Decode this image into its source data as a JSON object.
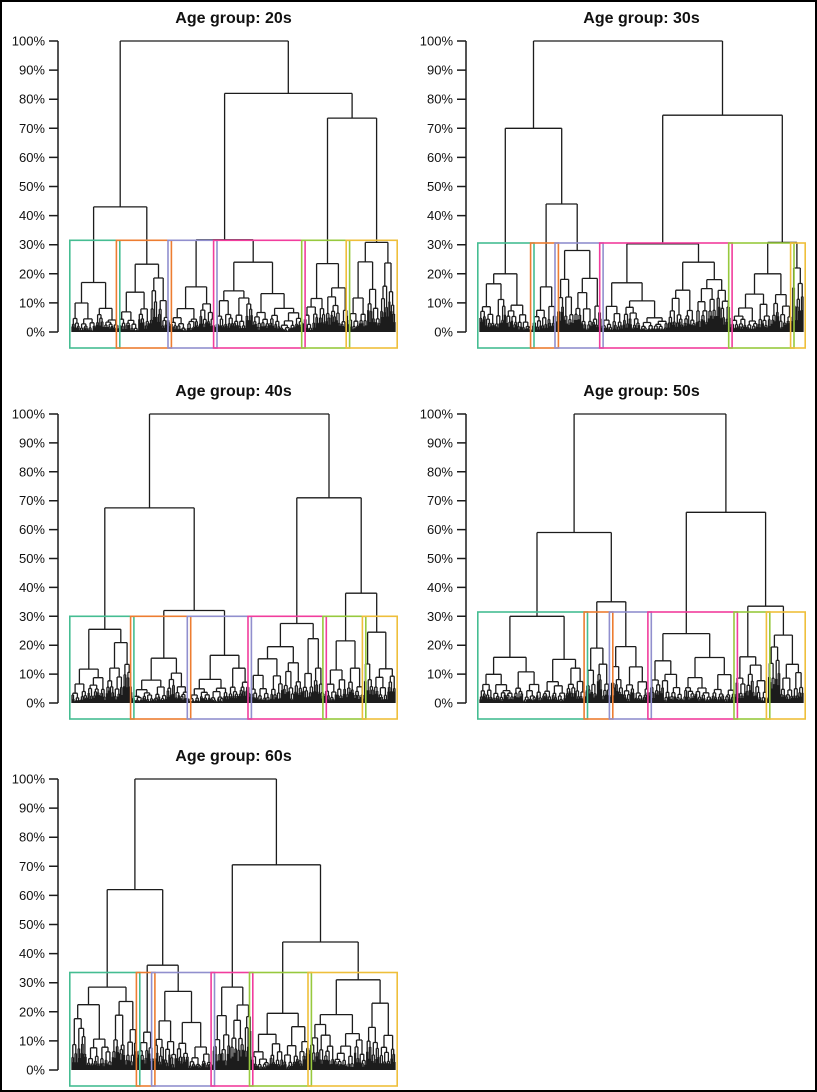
{
  "page": {
    "background": "#ffffff",
    "border_color": "#000000"
  },
  "chart_data": {
    "type": "dendrogram",
    "description": "Hierarchical clustering dendrograms of survey respondents by age group, each cut into 6 colored clusters (rect boxes) at roughly a 30% dissimilarity threshold",
    "layout": {
      "columns": 2,
      "rows": 3,
      "legend": "none",
      "grid": "off"
    },
    "y_axis": {
      "ylim": [
        0,
        100
      ],
      "tick_step_pct": 10,
      "tick_labels": [
        "0%",
        "10%",
        "20%",
        "30%",
        "40%",
        "50%",
        "60%",
        "70%",
        "80%",
        "90%",
        "100%"
      ]
    },
    "line_color": "#1c1c1c",
    "cluster_colors": [
      "#45bd92",
      "#ed7d31",
      "#918fce",
      "#f13d9d",
      "#97c93e",
      "#eebf3b"
    ],
    "panels": [
      {
        "title": "Age group: 20s",
        "row": 0,
        "col": 0,
        "seed": 13,
        "cut_height_pct": 31.5,
        "root_height_pct": 100,
        "clusters": [
          {
            "color_index": 0,
            "top_merge_pct": 17.0,
            "n_leaves": 46
          },
          {
            "color_index": 1,
            "top_merge_pct": 23.3,
            "n_leaves": 51
          },
          {
            "color_index": 2,
            "top_merge_pct": 15.5,
            "n_leaves": 45
          },
          {
            "color_index": 3,
            "top_merge_pct": 24.0,
            "n_leaves": 87
          },
          {
            "color_index": 4,
            "top_merge_pct": 23.5,
            "n_leaves": 44
          },
          {
            "color_index": 5,
            "top_merge_pct": 30.8,
            "n_leaves": 47
          }
        ],
        "skeleton": {
          "h": 100,
          "children": [
            {
              "h": 43,
              "children": [
                {
                  "cluster": 0
                },
                {
                  "cluster": 1
                }
              ]
            },
            {
              "h": 82,
              "children": [
                {
                  "h": 31.7,
                  "children": [
                    {
                      "cluster": 2
                    },
                    {
                      "cluster": 3
                    }
                  ]
                },
                {
                  "h": 73.5,
                  "children": [
                    {
                      "cluster": 4
                    },
                    {
                      "cluster": 5
                    }
                  ]
                }
              ]
            }
          ]
        }
      },
      {
        "title": "Age group: 30s",
        "row": 0,
        "col": 1,
        "seed": 37,
        "cut_height_pct": 30.6,
        "root_height_pct": 100,
        "clusters": [
          {
            "color_index": 0,
            "top_merge_pct": 20.0,
            "n_leaves": 52
          },
          {
            "color_index": 1,
            "top_merge_pct": 15.5,
            "n_leaves": 24
          },
          {
            "color_index": 2,
            "top_merge_pct": 28.0,
            "n_leaves": 44
          },
          {
            "color_index": 3,
            "top_merge_pct": 30.3,
            "n_leaves": 127
          },
          {
            "color_index": 4,
            "top_merge_pct": 20.0,
            "n_leaves": 61
          },
          {
            "color_index": 5,
            "top_merge_pct": 22.0,
            "n_leaves": 11
          }
        ],
        "skeleton": {
          "h": 100,
          "children": [
            {
              "h": 70,
              "children": [
                {
                  "cluster": 0
                },
                {
                  "h": 44,
                  "children": [
                    {
                      "cluster": 1
                    },
                    {
                      "cluster": 2
                    }
                  ]
                }
              ]
            },
            {
              "h": 74.5,
              "children": [
                {
                  "cluster": 3
                },
                {
                  "h": 30.8,
                  "children": [
                    {
                      "cluster": 4
                    },
                    {
                      "cluster": 5
                    }
                  ]
                }
              ]
            }
          ]
        }
      },
      {
        "title": "Age group: 40s",
        "row": 1,
        "col": 0,
        "seed": 91,
        "cut_height_pct": 30.0,
        "root_height_pct": 100,
        "clusters": [
          {
            "color_index": 0,
            "top_merge_pct": 25.5,
            "n_leaves": 60
          },
          {
            "color_index": 1,
            "top_merge_pct": 15.5,
            "n_leaves": 56
          },
          {
            "color_index": 2,
            "top_merge_pct": 16.5,
            "n_leaves": 60
          },
          {
            "color_index": 3,
            "top_merge_pct": 27.5,
            "n_leaves": 74
          },
          {
            "color_index": 4,
            "top_merge_pct": 21.5,
            "n_leaves": 39
          },
          {
            "color_index": 5,
            "top_merge_pct": 24.5,
            "n_leaves": 31
          }
        ],
        "skeleton": {
          "h": 100,
          "children": [
            {
              "h": 67.5,
              "children": [
                {
                  "cluster": 0
                },
                {
                  "h": 32,
                  "children": [
                    {
                      "cluster": 1
                    },
                    {
                      "cluster": 2
                    }
                  ]
                }
              ]
            },
            {
              "h": 71,
              "children": [
                {
                  "cluster": 3
                },
                {
                  "h": 38,
                  "children": [
                    {
                      "cluster": 4
                    },
                    {
                      "cluster": 5
                    }
                  ]
                }
              ]
            }
          ]
        }
      },
      {
        "title": "Age group: 50s",
        "row": 1,
        "col": 1,
        "seed": 57,
        "cut_height_pct": 31.5,
        "root_height_pct": 100,
        "clusters": [
          {
            "color_index": 0,
            "top_merge_pct": 30.0,
            "n_leaves": 105
          },
          {
            "color_index": 1,
            "top_merge_pct": 19.0,
            "n_leaves": 25
          },
          {
            "color_index": 2,
            "top_merge_pct": 19.5,
            "n_leaves": 38
          },
          {
            "color_index": 3,
            "top_merge_pct": 24.0,
            "n_leaves": 85
          },
          {
            "color_index": 4,
            "top_merge_pct": 16.0,
            "n_leaves": 32
          },
          {
            "color_index": 5,
            "top_merge_pct": 23.5,
            "n_leaves": 35
          }
        ],
        "skeleton": {
          "h": 100,
          "children": [
            {
              "h": 59,
              "children": [
                {
                  "cluster": 0
                },
                {
                  "h": 35,
                  "children": [
                    {
                      "cluster": 1
                    },
                    {
                      "cluster": 2
                    }
                  ]
                }
              ]
            },
            {
              "h": 66,
              "children": [
                {
                  "cluster": 3
                },
                {
                  "h": 33.5,
                  "children": [
                    {
                      "cluster": 4
                    },
                    {
                      "cluster": 5
                    }
                  ]
                }
              ]
            }
          ]
        }
      },
      {
        "title": "Age group: 60s",
        "row": 2,
        "col": 0,
        "seed": 73,
        "cut_height_pct": 33.5,
        "root_height_pct": 100,
        "clusters": [
          {
            "color_index": 0,
            "top_merge_pct": 28.5,
            "n_leaves": 66
          },
          {
            "color_index": 1,
            "top_merge_pct": 13.0,
            "n_leaves": 15
          },
          {
            "color_index": 2,
            "top_merge_pct": 27.0,
            "n_leaves": 59
          },
          {
            "color_index": 3,
            "top_merge_pct": 28.5,
            "n_leaves": 38
          },
          {
            "color_index": 4,
            "top_merge_pct": 19.5,
            "n_leaves": 58
          },
          {
            "color_index": 5,
            "top_merge_pct": 31.0,
            "n_leaves": 85
          }
        ],
        "skeleton": {
          "h": 100,
          "children": [
            {
              "h": 62,
              "children": [
                {
                  "cluster": 0
                },
                {
                  "h": 36,
                  "children": [
                    {
                      "cluster": 1
                    },
                    {
                      "cluster": 2
                    }
                  ]
                }
              ]
            },
            {
              "h": 70.5,
              "children": [
                {
                  "cluster": 3
                },
                {
                  "h": 44,
                  "children": [
                    {
                      "cluster": 4
                    },
                    {
                      "cluster": 5
                    }
                  ]
                }
              ]
            }
          ]
        }
      }
    ]
  }
}
